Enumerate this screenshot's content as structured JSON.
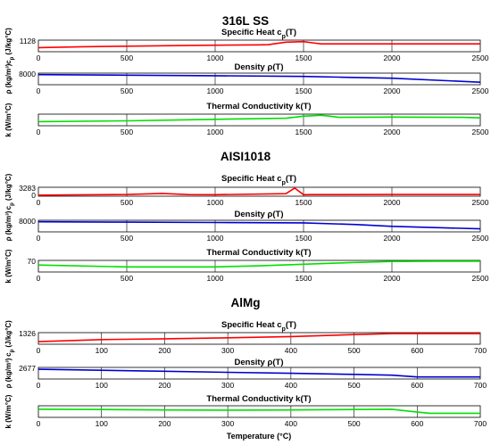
{
  "chart_data": [
    {
      "group_title": "316L SS",
      "panels": [
        {
          "type": "line",
          "title": "Specific Heat c_p(T)",
          "title_text": "Specific Heat c",
          "title_sub": "p",
          "title_tail": "(T)",
          "ylabel": "c_p (J/kg°C)",
          "ylabel_main": "c",
          "ylabel_sub": "p",
          "ylabel_tail": " (J/kg°C)",
          "ytick": "1128",
          "xlim": [
            0,
            2500
          ],
          "ylim": [
            0,
            1300
          ],
          "xticks": [
            "0",
            "500",
            "1000",
            "1500",
            "2000",
            "2500"
          ],
          "color": "#ff0000",
          "x": [
            0,
            250,
            500,
            750,
            1000,
            1250,
            1300,
            1400,
            1500,
            1550,
            1600,
            2000,
            2500
          ],
          "y": [
            460,
            560,
            620,
            680,
            730,
            770,
            790,
            1070,
            1128,
            1000,
            880,
            880,
            880
          ]
        },
        {
          "type": "line",
          "title": "Density ρ(T)",
          "title_text": "Density ρ(T)",
          "ylabel": "ρ (kg/m³)",
          "ytick": "8000",
          "xlim": [
            0,
            2500
          ],
          "ylim": [
            6000,
            8300
          ],
          "xticks": [
            "0",
            "500",
            "1000",
            "1500",
            "2000",
            "2500"
          ],
          "color": "#0000d0",
          "x": [
            0,
            500,
            1000,
            1500,
            1700,
            2000,
            2500
          ],
          "y": [
            8000,
            7900,
            7780,
            7650,
            7500,
            7300,
            6500
          ]
        },
        {
          "type": "line",
          "title": "Thermal Conductivity k(T)",
          "title_text": "Thermal Conductivity k(T)",
          "ylabel": "k (W/m°C)",
          "ytick": "",
          "xlim": [
            0,
            2500
          ],
          "ylim": [
            0,
            40
          ],
          "xticks": [
            "0",
            "500",
            "1000",
            "1500",
            "2000",
            "2500"
          ],
          "color": "#00e000",
          "x": [
            0,
            500,
            1000,
            1400,
            1500,
            1600,
            1650,
            1700,
            2000,
            2400,
            2500
          ],
          "y": [
            14,
            17,
            22,
            26,
            33,
            36,
            33,
            29,
            30,
            29,
            27
          ]
        }
      ]
    },
    {
      "group_title": "AISI1018",
      "panels": [
        {
          "type": "line",
          "title": "Specific Heat c_p(T)",
          "title_text": "Specific Heat c",
          "title_sub": "p",
          "title_tail": "(T)",
          "ylabel": "c_p (J/kg°C)",
          "ylabel_main": "c",
          "ylabel_sub": "p",
          "ylabel_tail": " (J/kg°C)",
          "ytick": "3283",
          "ytick_low": "0",
          "xlim": [
            0,
            2500
          ],
          "ylim": [
            0,
            3600
          ],
          "xticks": [
            "0",
            "500",
            "1000",
            "1500",
            "2000",
            "2500"
          ],
          "color": "#ff0000",
          "x": [
            0,
            500,
            700,
            850,
            1000,
            1400,
            1450,
            1500,
            1550,
            2000,
            2500
          ],
          "y": [
            450,
            700,
            1100,
            650,
            620,
            1000,
            3283,
            600,
            650,
            700,
            700
          ]
        },
        {
          "type": "line",
          "title": "Density ρ(T)",
          "title_text": "Density ρ(T)",
          "ylabel": "ρ (kg/m³)",
          "ytick": "8000",
          "xlim": [
            0,
            2500
          ],
          "ylim": [
            6000,
            8300
          ],
          "xticks": [
            "0",
            "500",
            "1000",
            "1500",
            "2000",
            "2500"
          ],
          "color": "#0000d0",
          "x": [
            0,
            500,
            1000,
            1500,
            1800,
            2000,
            2500
          ],
          "y": [
            8000,
            7930,
            7860,
            7780,
            7450,
            7100,
            6600
          ]
        },
        {
          "type": "line",
          "title": "Thermal Conductivity k(T)",
          "title_text": "Thermal Conductivity k(T)",
          "ylabel": "k (W/m°C)",
          "ytick": "70",
          "xlim": [
            0,
            2500
          ],
          "ylim": [
            0,
            75
          ],
          "xticks": [
            "0",
            "500",
            "1000",
            "1500",
            "2000",
            "2500"
          ],
          "color": "#00e000",
          "x": [
            0,
            500,
            1000,
            1250,
            1500,
            1750,
            2000,
            2250,
            2500
          ],
          "y": [
            45,
            33,
            33,
            40,
            50,
            60,
            68,
            70,
            70
          ]
        }
      ]
    },
    {
      "group_title": "AlMg",
      "xlabel": "Temperature (°C)",
      "panels": [
        {
          "type": "line",
          "title": "Specific Heat c_p(T)",
          "title_text": "Specific Heat c",
          "title_sub": "p",
          "title_tail": "(T)",
          "ylabel": "c_p (J/kg°C)",
          "ylabel_main": "c",
          "ylabel_sub": "p",
          "ylabel_tail": " (J/kg°C)",
          "ytick": "1326",
          "xlim": [
            0,
            700
          ],
          "ylim": [
            0,
            1450
          ],
          "xticks": [
            "0",
            "100",
            "200",
            "300",
            "400",
            "500",
            "600",
            "700"
          ],
          "color": "#ff0000",
          "x": [
            0,
            100,
            200,
            300,
            400,
            500,
            560,
            600,
            700
          ],
          "y": [
            320,
            580,
            680,
            800,
            960,
            1200,
            1326,
            1326,
            1326
          ]
        },
        {
          "type": "line",
          "title": "Density ρ(T)",
          "title_text": "Density ρ(T)",
          "ylabel": "ρ (kg/m³)",
          "ytick": "2677",
          "xlim": [
            0,
            700
          ],
          "ylim": [
            2300,
            2750
          ],
          "xticks": [
            "0",
            "100",
            "200",
            "300",
            "400",
            "500",
            "600",
            "700"
          ],
          "color": "#0000d0",
          "x": [
            0,
            100,
            200,
            300,
            400,
            500,
            560,
            600,
            700
          ],
          "y": [
            2677,
            2640,
            2600,
            2560,
            2520,
            2480,
            2450,
            2380,
            2380
          ]
        },
        {
          "type": "line",
          "title": "Thermal Conductivity k(T)",
          "title_text": "Thermal Conductivity k(T)",
          "ylabel": "k (W/m°C)",
          "ytick": "",
          "xlim": [
            0,
            700
          ],
          "ylim": [
            0,
            200
          ],
          "xticks": [
            "0",
            "100",
            "200",
            "300",
            "400",
            "500",
            "600",
            "700"
          ],
          "color": "#00e000",
          "x": [
            0,
            100,
            200,
            300,
            400,
            500,
            560,
            600,
            620,
            700
          ],
          "y": [
            140,
            135,
            128,
            125,
            128,
            135,
            140,
            90,
            70,
            70
          ]
        }
      ]
    }
  ]
}
